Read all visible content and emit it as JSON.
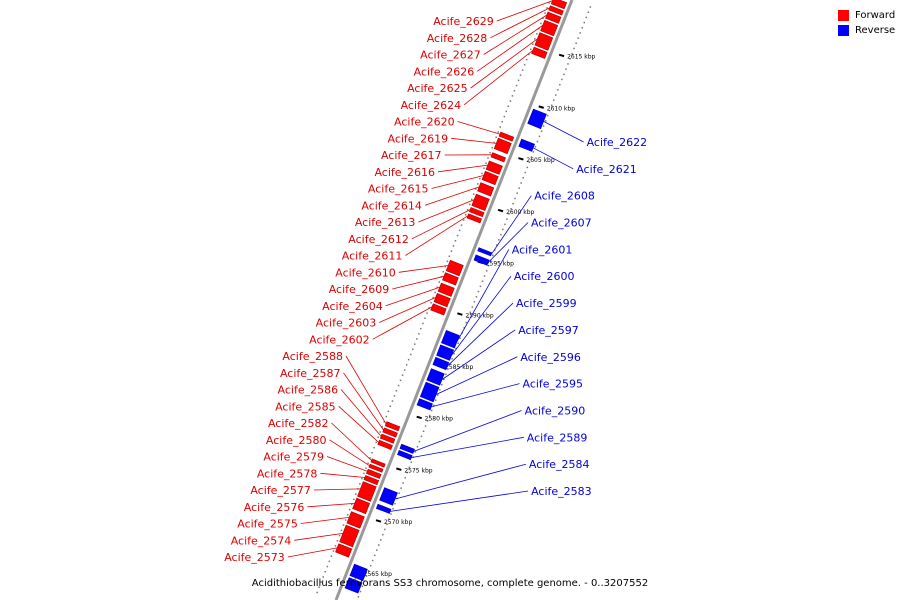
{
  "legend": [
    {
      "label": "Forward",
      "color": "#ff0000"
    },
    {
      "label": "Reverse",
      "color": "#0000ff"
    }
  ],
  "caption": "Acidithiobacillus ferrivorans SS3 chromosome, complete genome. - 0..3207552",
  "scale_ticks": [
    {
      "label": "2615 kbp",
      "kbp": 2615
    },
    {
      "label": "2610 kbp",
      "kbp": 2610
    },
    {
      "label": "2605 kbp",
      "kbp": 2605
    },
    {
      "label": "2600 kbp",
      "kbp": 2600
    },
    {
      "label": "2595 kbp",
      "kbp": 2595
    },
    {
      "label": "2590 kbp",
      "kbp": 2590
    },
    {
      "label": "2585 kbp",
      "kbp": 2585
    },
    {
      "label": "2580 kbp",
      "kbp": 2580
    },
    {
      "label": "2575 kbp",
      "kbp": 2575
    },
    {
      "label": "2570 kbp",
      "kbp": 2570
    },
    {
      "label": "2565 kbp",
      "kbp": 2565
    }
  ],
  "forward_genes": [
    {
      "label": "Acife_2629",
      "start_kbp": 2619.6,
      "end_kbp": 2619.0
    },
    {
      "label": "Acife_2628",
      "start_kbp": 2618.8,
      "end_kbp": 2618.4
    },
    {
      "label": "Acife_2627",
      "start_kbp": 2618.2,
      "end_kbp": 2617.6
    },
    {
      "label": "Acife_2626",
      "start_kbp": 2617.4,
      "end_kbp": 2616.4
    },
    {
      "label": "Acife_2625",
      "start_kbp": 2616.2,
      "end_kbp": 2615.0
    },
    {
      "label": "Acife_2624",
      "start_kbp": 2614.8,
      "end_kbp": 2614.2
    },
    {
      "label": "Acife_2620",
      "start_kbp": 2606.6,
      "end_kbp": 2606.2
    },
    {
      "label": "Acife_2619",
      "start_kbp": 2606.0,
      "end_kbp": 2605.0
    },
    {
      "label": "Acife_2617",
      "start_kbp": 2604.6,
      "end_kbp": 2604.2
    },
    {
      "label": "Acife_2616",
      "start_kbp": 2603.8,
      "end_kbp": 2603.0
    },
    {
      "label": "Acife_2615",
      "start_kbp": 2602.8,
      "end_kbp": 2602.0
    },
    {
      "label": "Acife_2614",
      "start_kbp": 2601.7,
      "end_kbp": 2600.9
    },
    {
      "label": "Acife_2613",
      "start_kbp": 2600.6,
      "end_kbp": 2599.5
    },
    {
      "label": "Acife_2612",
      "start_kbp": 2599.3,
      "end_kbp": 2598.9
    },
    {
      "label": "Acife_2611",
      "start_kbp": 2598.7,
      "end_kbp": 2598.3
    },
    {
      "label": "Acife_2610",
      "start_kbp": 2594.2,
      "end_kbp": 2593.2
    },
    {
      "label": "Acife_2609",
      "start_kbp": 2593.0,
      "end_kbp": 2592.3
    },
    {
      "label": "Acife_2604",
      "start_kbp": 2592.0,
      "end_kbp": 2591.2
    },
    {
      "label": "Acife_2603",
      "start_kbp": 2591.0,
      "end_kbp": 2590.2
    },
    {
      "label": "Acife_2602",
      "start_kbp": 2590.0,
      "end_kbp": 2589.4
    },
    {
      "label": "Acife_2588",
      "start_kbp": 2578.6,
      "end_kbp": 2578.2
    },
    {
      "label": "Acife_2587",
      "start_kbp": 2578.0,
      "end_kbp": 2577.6
    },
    {
      "label": "Acife_2586",
      "start_kbp": 2577.4,
      "end_kbp": 2577.0
    },
    {
      "label": "Acife_2585",
      "start_kbp": 2576.8,
      "end_kbp": 2576.4
    },
    {
      "label": "Acife_2582",
      "start_kbp": 2575.0,
      "end_kbp": 2574.7
    },
    {
      "label": "Acife_2580",
      "start_kbp": 2574.5,
      "end_kbp": 2574.2
    },
    {
      "label": "Acife_2579",
      "start_kbp": 2574.0,
      "end_kbp": 2573.6
    },
    {
      "label": "Acife_2578",
      "start_kbp": 2573.4,
      "end_kbp": 2573.0
    },
    {
      "label": "Acife_2577",
      "start_kbp": 2572.8,
      "end_kbp": 2571.4
    },
    {
      "label": "Acife_2576",
      "start_kbp": 2571.2,
      "end_kbp": 2570.2
    },
    {
      "label": "Acife_2575",
      "start_kbp": 2569.9,
      "end_kbp": 2568.8
    },
    {
      "label": "Acife_2574",
      "start_kbp": 2568.6,
      "end_kbp": 2567.0
    },
    {
      "label": "Acife_2573",
      "start_kbp": 2566.8,
      "end_kbp": 2566.0
    }
  ],
  "reverse_genes": [
    {
      "label": "Acife_2622",
      "start_kbp": 2609.6,
      "end_kbp": 2608.2
    },
    {
      "label": "Acife_2621",
      "start_kbp": 2606.7,
      "end_kbp": 2606.0
    },
    {
      "label": "Acife_2608",
      "start_kbp": 2596.2,
      "end_kbp": 2595.9
    },
    {
      "label": "Acife_2607",
      "start_kbp": 2595.5,
      "end_kbp": 2595.0
    },
    {
      "label": "Acife_2601",
      "start_kbp": 2588.2,
      "end_kbp": 2587.0
    },
    {
      "label": "Acife_2600",
      "start_kbp": 2586.8,
      "end_kbp": 2585.8
    },
    {
      "label": "Acife_2599",
      "start_kbp": 2585.6,
      "end_kbp": 2584.9
    },
    {
      "label": "Acife_2597",
      "start_kbp": 2584.5,
      "end_kbp": 2583.4
    },
    {
      "label": "Acife_2596",
      "start_kbp": 2583.2,
      "end_kbp": 2581.8
    },
    {
      "label": "Acife_2595",
      "start_kbp": 2581.6,
      "end_kbp": 2581.0
    },
    {
      "label": "Acife_2590",
      "start_kbp": 2577.2,
      "end_kbp": 2576.8
    },
    {
      "label": "Acife_2589",
      "start_kbp": 2576.6,
      "end_kbp": 2576.2
    },
    {
      "label": "Acife_2584",
      "start_kbp": 2573.0,
      "end_kbp": 2571.8
    },
    {
      "label": "Acife_2583",
      "start_kbp": 2571.4,
      "end_kbp": 2571.0
    },
    {
      "label": "",
      "start_kbp": 2565.6,
      "end_kbp": 2564.5
    },
    {
      "label": "",
      "start_kbp": 2564.3,
      "end_kbp": 2563.3
    }
  ]
}
